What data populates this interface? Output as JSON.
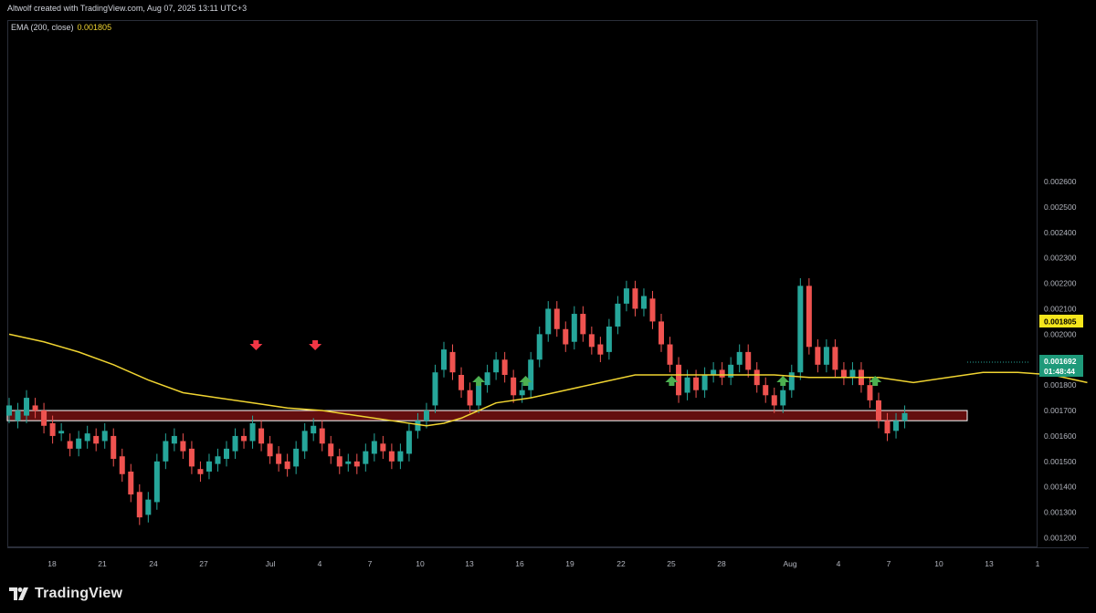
{
  "header": {
    "attribution": "Altwolf created with TradingView.com, Aug 07, 2025 13:11 UTC+3"
  },
  "indicator": {
    "label": "EMA (200, close)",
    "value": "0.001805"
  },
  "footer": {
    "brand": "TradingView"
  },
  "price_badges": {
    "ema": {
      "value": "0.001805",
      "color": "#f5e61c"
    },
    "last": {
      "value": "0.001692",
      "countdown": "01:48:44",
      "color": "#1e9a7a"
    }
  },
  "colors": {
    "up": "#26a69a",
    "down": "#ef5350",
    "ema": "#f0d431",
    "zone": "#b71c1c",
    "up_arrow": "#4caf50",
    "down_arrow": "#f23645"
  },
  "chart_data": {
    "type": "candlestick",
    "ylim": [
      0.00115,
      0.00265
    ],
    "y_ticks": [
      "0.001200",
      "0.001300",
      "0.001400",
      "0.001500",
      "0.001600",
      "0.001700",
      "0.001800",
      "0.001900",
      "0.002000",
      "0.002100",
      "0.002200",
      "0.002300",
      "0.002400",
      "0.002500",
      "0.002600"
    ],
    "x_ticks": [
      "18",
      "21",
      "24",
      "27",
      "Jul",
      "4",
      "7",
      "10",
      "13",
      "16",
      "19",
      "22",
      "25",
      "28",
      "Aug",
      "4",
      "7",
      "10",
      "13",
      "1"
    ],
    "ema_200": [
      [
        0,
        0.002
      ],
      [
        2,
        0.00197
      ],
      [
        4,
        0.00193
      ],
      [
        6,
        0.00188
      ],
      [
        8,
        0.00182
      ],
      [
        10,
        0.00177
      ],
      [
        12,
        0.00175
      ],
      [
        14,
        0.00173
      ],
      [
        16,
        0.00171
      ],
      [
        18,
        0.0017
      ],
      [
        20,
        0.00168
      ],
      [
        22,
        0.00166
      ],
      [
        24,
        0.00164
      ],
      [
        25,
        0.00165
      ],
      [
        26,
        0.00167
      ],
      [
        27,
        0.0017
      ],
      [
        28,
        0.00173
      ],
      [
        30,
        0.00175
      ],
      [
        32,
        0.00178
      ],
      [
        34,
        0.00181
      ],
      [
        36,
        0.00184
      ],
      [
        38,
        0.00184
      ],
      [
        40,
        0.00184
      ],
      [
        42,
        0.00184
      ],
      [
        44,
        0.00184
      ],
      [
        46,
        0.00183
      ],
      [
        48,
        0.00183
      ],
      [
        50,
        0.00183
      ],
      [
        52,
        0.00181
      ],
      [
        54,
        0.00183
      ],
      [
        56,
        0.00185
      ],
      [
        58,
        0.00185
      ],
      [
        60,
        0.00184
      ],
      [
        62,
        0.00181
      ]
    ],
    "support_zone": [
      0.00166,
      0.0017
    ],
    "down_arrows": [
      14.2,
      17.6
    ],
    "up_arrows": [
      27.0,
      29.7,
      38.1,
      44.5,
      49.8
    ],
    "candles": [
      [
        0,
        0.00168,
        0.00172
      ],
      [
        0.5,
        0.00166,
        0.0017
      ],
      [
        1,
        0.00168,
        0.00175
      ],
      [
        1.5,
        0.00172,
        0.0017
      ],
      [
        2,
        0.0017,
        0.00164
      ],
      [
        2.5,
        0.00165,
        0.0016
      ],
      [
        3,
        0.00161,
        0.00162
      ],
      [
        3.5,
        0.00158,
        0.00155
      ],
      [
        4,
        0.00155,
        0.00159
      ],
      [
        4.5,
        0.00158,
        0.00161
      ],
      [
        5,
        0.0016,
        0.00157
      ],
      [
        5.5,
        0.00158,
        0.00162
      ],
      [
        6,
        0.0016,
        0.00151
      ],
      [
        6.5,
        0.00152,
        0.00145
      ],
      [
        7,
        0.00146,
        0.00137
      ],
      [
        7.5,
        0.00138,
        0.00128
      ],
      [
        8,
        0.00129,
        0.00135
      ],
      [
        8.5,
        0.00134,
        0.0015
      ],
      [
        9,
        0.0015,
        0.00158
      ],
      [
        9.5,
        0.00157,
        0.0016
      ],
      [
        10,
        0.00158,
        0.00154
      ],
      [
        10.5,
        0.00155,
        0.00148
      ],
      [
        11,
        0.00147,
        0.00145
      ],
      [
        11.5,
        0.00146,
        0.0015
      ],
      [
        12,
        0.00149,
        0.00152
      ],
      [
        12.5,
        0.00151,
        0.00155
      ],
      [
        13,
        0.00154,
        0.0016
      ],
      [
        13.5,
        0.0016,
        0.00158
      ],
      [
        14,
        0.00158,
        0.00165
      ],
      [
        14.5,
        0.00163,
        0.00157
      ],
      [
        15,
        0.00157,
        0.00152
      ],
      [
        15.5,
        0.00153,
        0.00149
      ],
      [
        16,
        0.0015,
        0.00147
      ],
      [
        16.5,
        0.00148,
        0.00155
      ],
      [
        17,
        0.00154,
        0.00162
      ],
      [
        17.5,
        0.00161,
        0.00164
      ],
      [
        18,
        0.00163,
        0.00157
      ],
      [
        18.5,
        0.00157,
        0.00152
      ],
      [
        19,
        0.00152,
        0.00148
      ],
      [
        19.5,
        0.00149,
        0.0015
      ],
      [
        20,
        0.0015,
        0.00148
      ],
      [
        20.5,
        0.00149,
        0.00154
      ],
      [
        21,
        0.00153,
        0.00158
      ],
      [
        21.5,
        0.00157,
        0.00154
      ],
      [
        22,
        0.00154,
        0.0015
      ],
      [
        22.5,
        0.0015,
        0.00154
      ],
      [
        23,
        0.00153,
        0.00162
      ],
      [
        23.5,
        0.00162,
        0.00166
      ],
      [
        24,
        0.00166,
        0.0017
      ],
      [
        24.5,
        0.00172,
        0.00185
      ],
      [
        25,
        0.00186,
        0.00194
      ],
      [
        25.5,
        0.00193,
        0.00185
      ],
      [
        26,
        0.00184,
        0.00178
      ],
      [
        26.5,
        0.00178,
        0.00172
      ],
      [
        27,
        0.00172,
        0.0018
      ],
      [
        27.5,
        0.0018,
        0.00185
      ],
      [
        28,
        0.00185,
        0.0019
      ],
      [
        28.5,
        0.0019,
        0.00184
      ],
      [
        29,
        0.00183,
        0.00176
      ],
      [
        29.5,
        0.00176,
        0.00178
      ],
      [
        30,
        0.00178,
        0.0019
      ],
      [
        30.5,
        0.0019,
        0.002
      ],
      [
        31,
        0.002,
        0.0021
      ],
      [
        31.5,
        0.0021,
        0.00202
      ],
      [
        32,
        0.00202,
        0.00196
      ],
      [
        32.5,
        0.00197,
        0.00208
      ],
      [
        33,
        0.00208,
        0.002
      ],
      [
        33.5,
        0.002,
        0.00195
      ],
      [
        34,
        0.00196,
        0.00192
      ],
      [
        34.5,
        0.00193,
        0.00203
      ],
      [
        35,
        0.00203,
        0.00212
      ],
      [
        35.5,
        0.00212,
        0.00218
      ],
      [
        36,
        0.00218,
        0.0021
      ],
      [
        36.5,
        0.0021,
        0.00215
      ],
      [
        37,
        0.00214,
        0.00205
      ],
      [
        37.5,
        0.00205,
        0.00196
      ],
      [
        38,
        0.00196,
        0.00188
      ],
      [
        38.5,
        0.00188,
        0.00176
      ],
      [
        39,
        0.00177,
        0.00183
      ],
      [
        39.5,
        0.00183,
        0.00178
      ],
      [
        40,
        0.00178,
        0.00184
      ],
      [
        40.5,
        0.00184,
        0.00186
      ],
      [
        41,
        0.00186,
        0.00183
      ],
      [
        41.5,
        0.00183,
        0.00188
      ],
      [
        42,
        0.00188,
        0.00193
      ],
      [
        42.5,
        0.00193,
        0.00186
      ],
      [
        43,
        0.00186,
        0.0018
      ],
      [
        43.5,
        0.0018,
        0.00176
      ],
      [
        44,
        0.00176,
        0.00172
      ],
      [
        44.5,
        0.00172,
        0.00178
      ],
      [
        45,
        0.00178,
        0.00185
      ],
      [
        45.5,
        0.00185,
        0.00219
      ],
      [
        46,
        0.00219,
        0.00195
      ],
      [
        46.5,
        0.00195,
        0.00188
      ],
      [
        47,
        0.00188,
        0.00195
      ],
      [
        47.5,
        0.00195,
        0.00186
      ],
      [
        48,
        0.00186,
        0.00183
      ],
      [
        48.5,
        0.00183,
        0.00186
      ],
      [
        49,
        0.00186,
        0.0018
      ],
      [
        49.5,
        0.0018,
        0.00174
      ],
      [
        50,
        0.00174,
        0.00166
      ],
      [
        50.5,
        0.00166,
        0.00161
      ],
      [
        51,
        0.00162,
        0.00166
      ],
      [
        51.5,
        0.00166,
        0.00169
      ]
    ]
  }
}
